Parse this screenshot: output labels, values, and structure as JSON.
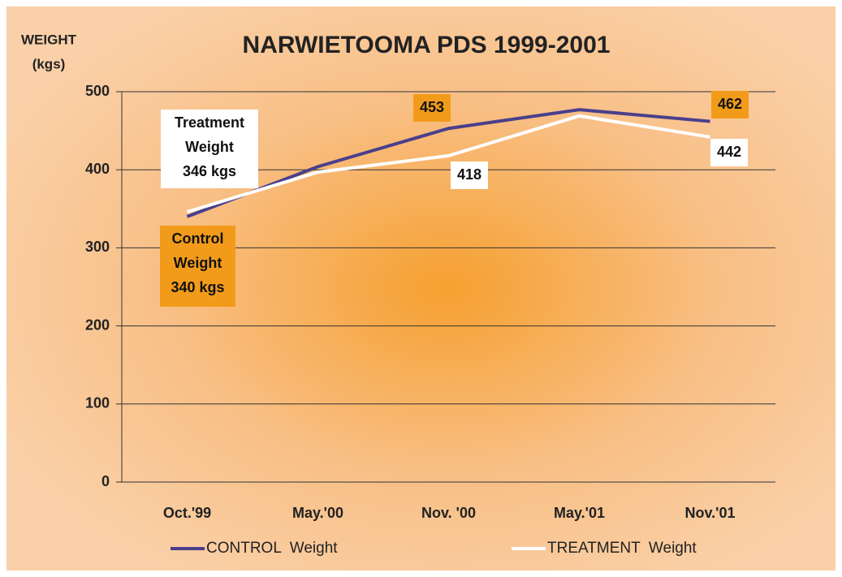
{
  "chart_data": {
    "type": "line",
    "title": "NARWIETOOMA PDS 1999-2001",
    "y_label": [
      "WEIGHT",
      "(kgs)"
    ],
    "categories": [
      "Oct.'99",
      "May.'00",
      "Nov. '00",
      "May.'01",
      "Nov.'01"
    ],
    "series": [
      {
        "name": "CONTROL  Weight",
        "color": "#4a3f8c",
        "values": [
          340,
          404,
          453,
          477,
          462
        ],
        "value_labels": [
          null,
          null,
          "453",
          null,
          "462"
        ]
      },
      {
        "name": "TREATMENT  Weight",
        "color": "#ffffff",
        "values": [
          346,
          397,
          418,
          469,
          442
        ],
        "value_labels": [
          null,
          null,
          "418",
          null,
          "442"
        ]
      }
    ],
    "annotations": [
      {
        "text": [
          "Treatment",
          "Weight",
          "346 kgs"
        ],
        "color": "#ffffff"
      },
      {
        "text": [
          "Control",
          "Weight",
          "340 kgs"
        ],
        "color": "#f29b1a"
      }
    ],
    "ylim": [
      0,
      500
    ],
    "yticks": [
      0,
      100,
      200,
      300,
      400,
      500
    ],
    "grid": true,
    "legend": "bottom"
  }
}
